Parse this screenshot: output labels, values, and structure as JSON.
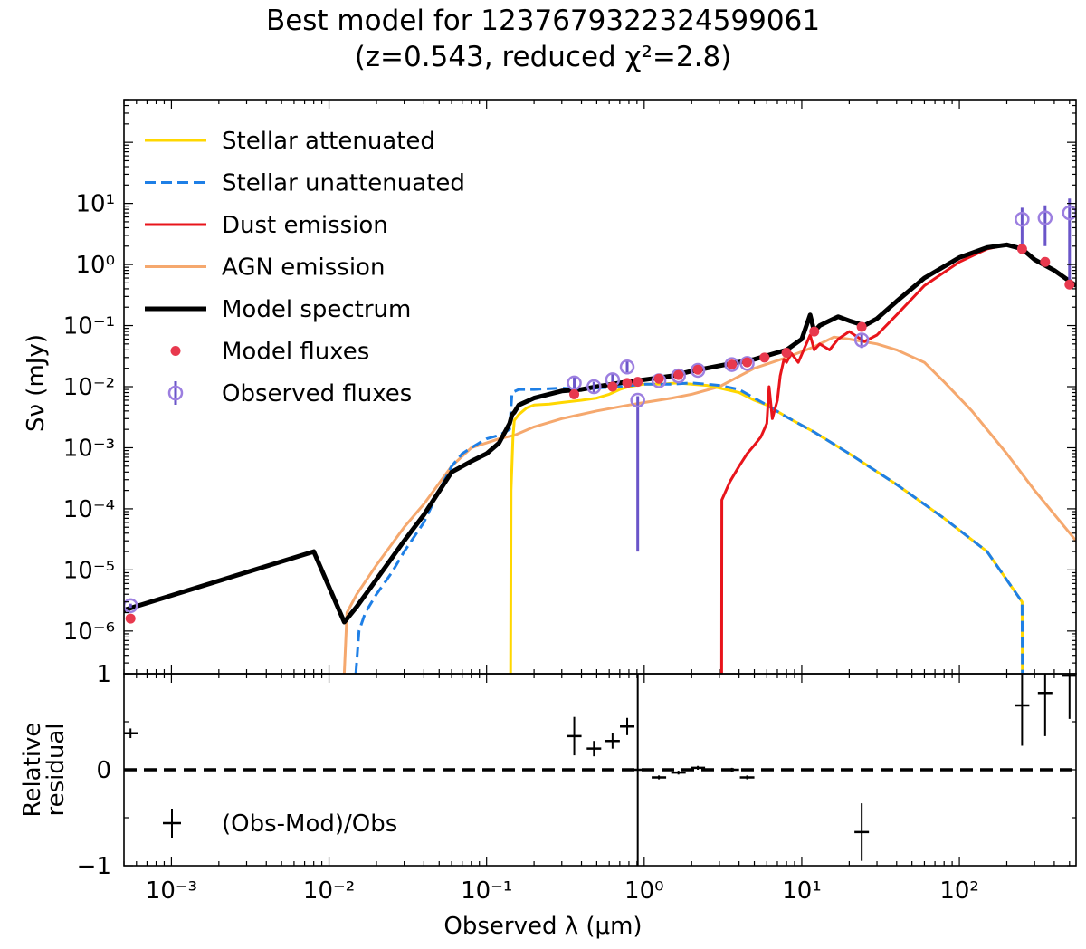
{
  "chart_data": [
    {
      "type": "line",
      "panel": "sed",
      "title": "Best model for 1237679322324599061",
      "subtitle": "(z=0.543, reduced χ²=2.8)",
      "object_id": "1237679322324599061",
      "redshift": 0.543,
      "reduced_chi2": 2.8,
      "xlabel": "Observed λ (μm)",
      "ylabel": "Sν (mJy)",
      "xscale": "log",
      "yscale": "log",
      "xlim": [
        0.0005,
        550
      ],
      "ylim": [
        2e-07,
        500
      ],
      "ytick_labels": [
        "10⁻⁶",
        "10⁻⁵",
        "10⁻⁴",
        "10⁻³",
        "10⁻²",
        "10⁻¹",
        "10⁰",
        "10¹"
      ],
      "legend_position": "upper-left",
      "series": [
        {
          "name": "Stellar attenuated",
          "color": "#FFD700",
          "style": "solid",
          "x": [
            0.142,
            0.143,
            0.147,
            0.15,
            0.16,
            0.18,
            0.2,
            0.25,
            0.3,
            0.4,
            0.5,
            0.6,
            0.7,
            0.8,
            1.0,
            1.3,
            1.6,
            2.0,
            2.5,
            3.0,
            4.0,
            5.0,
            6.0,
            8.0,
            12,
            20,
            40,
            80,
            150,
            250,
            251
          ],
          "y": [
            2e-07,
            0.0002,
            0.0015,
            0.0028,
            0.0035,
            0.0045,
            0.005,
            0.0052,
            0.0055,
            0.006,
            0.0065,
            0.0075,
            0.009,
            0.01,
            0.011,
            0.011,
            0.0115,
            0.011,
            0.0105,
            0.0095,
            0.008,
            0.006,
            0.005,
            0.0032,
            0.0018,
            0.0008,
            0.00025,
            7e-05,
            2e-05,
            3e-06,
            2e-07
          ]
        },
        {
          "name": "Stellar unattenuated",
          "color": "#1E7FE6",
          "style": "dashed",
          "x": [
            0.0148,
            0.0155,
            0.017,
            0.02,
            0.025,
            0.03,
            0.04,
            0.05,
            0.06,
            0.07,
            0.08,
            0.09,
            0.1,
            0.12,
            0.14,
            0.145,
            0.16,
            0.2,
            0.3,
            0.4,
            0.5,
            0.7,
            1.0,
            1.5,
            2.0,
            2.5,
            3.0,
            4.0,
            5.0,
            6.0,
            8.0,
            12,
            20,
            40,
            80,
            150,
            250,
            251
          ],
          "y": [
            2e-07,
            1e-06,
            2e-06,
            4e-06,
            9e-06,
            2e-05,
            6e-05,
            0.0002,
            0.0005,
            0.0008,
            0.001,
            0.0012,
            0.0014,
            0.0016,
            0.002,
            0.008,
            0.009,
            0.009,
            0.0095,
            0.009,
            0.0095,
            0.01,
            0.011,
            0.011,
            0.0115,
            0.011,
            0.0105,
            0.009,
            0.0065,
            0.005,
            0.0032,
            0.0018,
            0.0008,
            0.00025,
            7e-05,
            2e-05,
            3e-06,
            2e-07
          ]
        },
        {
          "name": "Dust emission",
          "color": "#E8141B",
          "style": "solid",
          "x": [
            3.1,
            3.11,
            3.5,
            4.0,
            4.5,
            5.0,
            5.5,
            6.0,
            6.2,
            6.5,
            7.0,
            7.3,
            7.7,
            8.0,
            8.6,
            9.5,
            11.3,
            12,
            13,
            15,
            17,
            20,
            25,
            30,
            40,
            60,
            100,
            150,
            200,
            250,
            300,
            400,
            550
          ],
          "y": [
            2e-07,
            0.00014,
            0.00028,
            0.0005,
            0.0008,
            0.0011,
            0.0015,
            0.0025,
            0.01,
            0.003,
            0.006,
            0.015,
            0.028,
            0.025,
            0.035,
            0.025,
            0.07,
            0.04,
            0.05,
            0.04,
            0.06,
            0.08,
            0.055,
            0.07,
            0.15,
            0.45,
            1.1,
            1.8,
            2.1,
            1.8,
            1.2,
            0.8,
            0.45
          ]
        },
        {
          "name": "AGN emission",
          "color": "#F5A86E",
          "style": "solid",
          "x": [
            0.0125,
            0.013,
            0.015,
            0.02,
            0.03,
            0.04,
            0.06,
            0.08,
            0.1,
            0.12,
            0.15,
            0.2,
            0.3,
            0.5,
            0.8,
            1.0,
            1.5,
            2.0,
            3.0,
            5.0,
            8.0,
            12,
            16,
            20,
            30,
            40,
            60,
            80,
            120,
            200,
            300,
            550
          ],
          "y": [
            2e-07,
            2e-06,
            4e-06,
            1.2e-05,
            5e-05,
            0.00012,
            0.0005,
            0.001,
            0.0012,
            0.0014,
            0.0016,
            0.0022,
            0.003,
            0.004,
            0.005,
            0.0055,
            0.0065,
            0.0075,
            0.01,
            0.02,
            0.03,
            0.045,
            0.065,
            0.06,
            0.05,
            0.04,
            0.025,
            0.012,
            0.004,
            0.0008,
            0.0002,
            3e-05
          ]
        },
        {
          "name": "Model spectrum",
          "color": "#000000",
          "style": "solid",
          "x": [
            0.0005,
            0.008,
            0.0125,
            0.015,
            0.02,
            0.03,
            0.04,
            0.06,
            0.08,
            0.1,
            0.12,
            0.14,
            0.145,
            0.15,
            0.16,
            0.2,
            0.3,
            0.4,
            0.5,
            0.7,
            1.0,
            1.5,
            2.0,
            3.0,
            5.0,
            8.0,
            10,
            11.3,
            12,
            13,
            15,
            17,
            20,
            25,
            30,
            40,
            60,
            100,
            150,
            200,
            250,
            300,
            400,
            550
          ],
          "y": [
            2.2e-06,
            2e-05,
            1.4e-06,
            2.5e-06,
            7e-06,
            3e-05,
            8e-05,
            0.0004,
            0.0006,
            0.0008,
            0.0012,
            0.0025,
            0.0035,
            0.0038,
            0.005,
            0.0065,
            0.0085,
            0.009,
            0.01,
            0.0115,
            0.013,
            0.015,
            0.018,
            0.022,
            0.028,
            0.04,
            0.06,
            0.15,
            0.08,
            0.1,
            0.12,
            0.14,
            0.12,
            0.1,
            0.13,
            0.25,
            0.6,
            1.3,
            1.9,
            2.1,
            1.8,
            1.2,
            0.8,
            0.45
          ]
        }
      ],
      "model_fluxes": {
        "name": "Model fluxes",
        "color": "#E8394E",
        "x": [
          0.00055,
          0.36,
          0.63,
          0.78,
          0.91,
          1.24,
          1.65,
          2.19,
          3.6,
          4.5,
          5.8,
          8.0,
          12,
          24,
          250,
          350,
          500
        ],
        "y": [
          1.6e-06,
          0.0075,
          0.01,
          0.0115,
          0.012,
          0.0135,
          0.0155,
          0.019,
          0.023,
          0.025,
          0.03,
          0.036,
          0.08,
          0.095,
          1.8,
          1.1,
          0.47
        ]
      },
      "observed_fluxes": {
        "name": "Observed fluxes",
        "color": "#9C7FE0",
        "x": [
          0.00055,
          0.36,
          0.48,
          0.63,
          0.78,
          0.91,
          1.24,
          1.65,
          2.19,
          3.6,
          4.5,
          24,
          250,
          350,
          500
        ],
        "y": [
          2.6e-06,
          0.0115,
          0.01,
          0.013,
          0.021,
          0.006,
          0.0125,
          0.015,
          0.0185,
          0.023,
          0.024,
          0.058,
          5.5,
          5.8,
          7.0
        ],
        "yerr_lo": [
          2e-07,
          0.003,
          0.002,
          0.003,
          0.005,
          0.00598,
          0.001,
          0.001,
          0.001,
          0.001,
          0.001,
          0.015,
          3.5,
          3.8,
          6.5
        ],
        "yerr_hi": [
          2e-07,
          0.003,
          0.002,
          0.003,
          0.005,
          0.001,
          0.001,
          0.001,
          0.001,
          0.001,
          0.001,
          0.015,
          3.0,
          3.5,
          5.0
        ]
      }
    },
    {
      "type": "scatter",
      "panel": "residual",
      "ylabel": "Relative residual",
      "ylabel_line1": "Relative",
      "ylabel_line2": "residual",
      "xscale": "log",
      "xlim": [
        0.0005,
        550
      ],
      "ylim": [
        -1,
        1
      ],
      "ytick_labels": [
        "−1",
        "0",
        "1"
      ],
      "xtick_labels": [
        "10⁻³",
        "10⁻²",
        "10⁻¹",
        "10⁰",
        "10¹",
        "10²"
      ],
      "legend_position": "lower-left",
      "series": [
        {
          "name": "(Obs-Mod)/Obs",
          "color": "#000000",
          "x": [
            0.00055,
            0.36,
            0.48,
            0.63,
            0.78,
            0.91,
            1.24,
            1.65,
            2.19,
            3.6,
            4.5,
            24,
            250,
            350,
            500
          ],
          "y": [
            0.38,
            0.35,
            0.22,
            0.3,
            0.45,
            0.0,
            -0.08,
            -0.03,
            0.02,
            0.0,
            -0.08,
            -0.65,
            0.67,
            0.8,
            0.98
          ],
          "yerr": [
            0.05,
            0.2,
            0.08,
            0.08,
            0.09,
            1.4,
            0.02,
            0.02,
            0.02,
            0.02,
            0.02,
            0.3,
            0.42,
            0.45,
            0.45
          ]
        }
      ],
      "zero_line": 0
    }
  ]
}
